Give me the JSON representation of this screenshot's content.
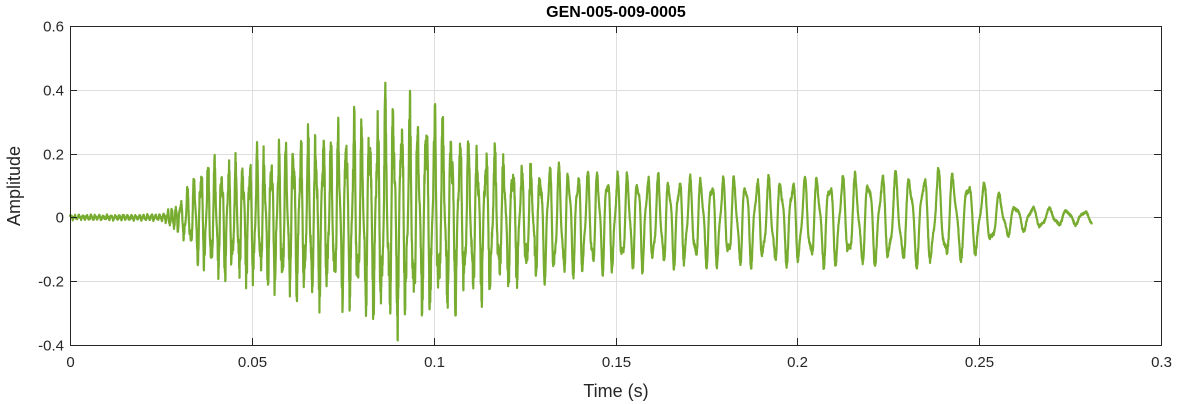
{
  "chart_data": {
    "type": "line",
    "title": "GEN-005-009-0005",
    "xlabel": "Time (s)",
    "ylabel": "Amplitude",
    "xlim": [
      0,
      0.3
    ],
    "ylim": [
      -0.4,
      0.6
    ],
    "xticks": [
      0,
      0.05,
      0.1,
      0.15,
      0.2,
      0.25,
      0.3
    ],
    "xtick_labels": [
      "0",
      "0.05",
      "0.1",
      "0.15",
      "0.2",
      "0.25",
      "0.3"
    ],
    "yticks": [
      -0.4,
      -0.2,
      0,
      0.2,
      0.4,
      0.6
    ],
    "ytick_labels": [
      "-0.4",
      "-0.2",
      "0",
      "0.2",
      "0.4",
      "0.6"
    ],
    "grid": true,
    "line_color": "#77ac30",
    "signal_duration": 0.281,
    "envelope_points": [
      {
        "t": 0.0,
        "pos": 0.008,
        "neg": -0.008
      },
      {
        "t": 0.025,
        "pos": 0.01,
        "neg": -0.01
      },
      {
        "t": 0.03,
        "pos": 0.05,
        "neg": -0.06
      },
      {
        "t": 0.037,
        "pos": 0.22,
        "neg": -0.2
      },
      {
        "t": 0.045,
        "pos": 0.2,
        "neg": -0.23
      },
      {
        "t": 0.06,
        "pos": 0.27,
        "neg": -0.27
      },
      {
        "t": 0.075,
        "pos": 0.35,
        "neg": -0.3
      },
      {
        "t": 0.09,
        "pos": 0.43,
        "neg": -0.38
      },
      {
        "t": 0.1,
        "pos": 0.39,
        "neg": -0.34
      },
      {
        "t": 0.11,
        "pos": 0.28,
        "neg": -0.3
      },
      {
        "t": 0.125,
        "pos": 0.19,
        "neg": -0.23
      },
      {
        "t": 0.14,
        "pos": 0.16,
        "neg": -0.19
      },
      {
        "t": 0.16,
        "pos": 0.14,
        "neg": -0.17
      },
      {
        "t": 0.19,
        "pos": 0.13,
        "neg": -0.16
      },
      {
        "t": 0.215,
        "pos": 0.14,
        "neg": -0.16
      },
      {
        "t": 0.24,
        "pos": 0.155,
        "neg": -0.16
      },
      {
        "t": 0.25,
        "pos": 0.13,
        "neg": -0.12
      },
      {
        "t": 0.26,
        "pos": 0.04,
        "neg": -0.05
      },
      {
        "t": 0.27,
        "pos": 0.03,
        "neg": -0.03
      },
      {
        "t": 0.281,
        "pos": 0.02,
        "neg": -0.02
      }
    ]
  }
}
